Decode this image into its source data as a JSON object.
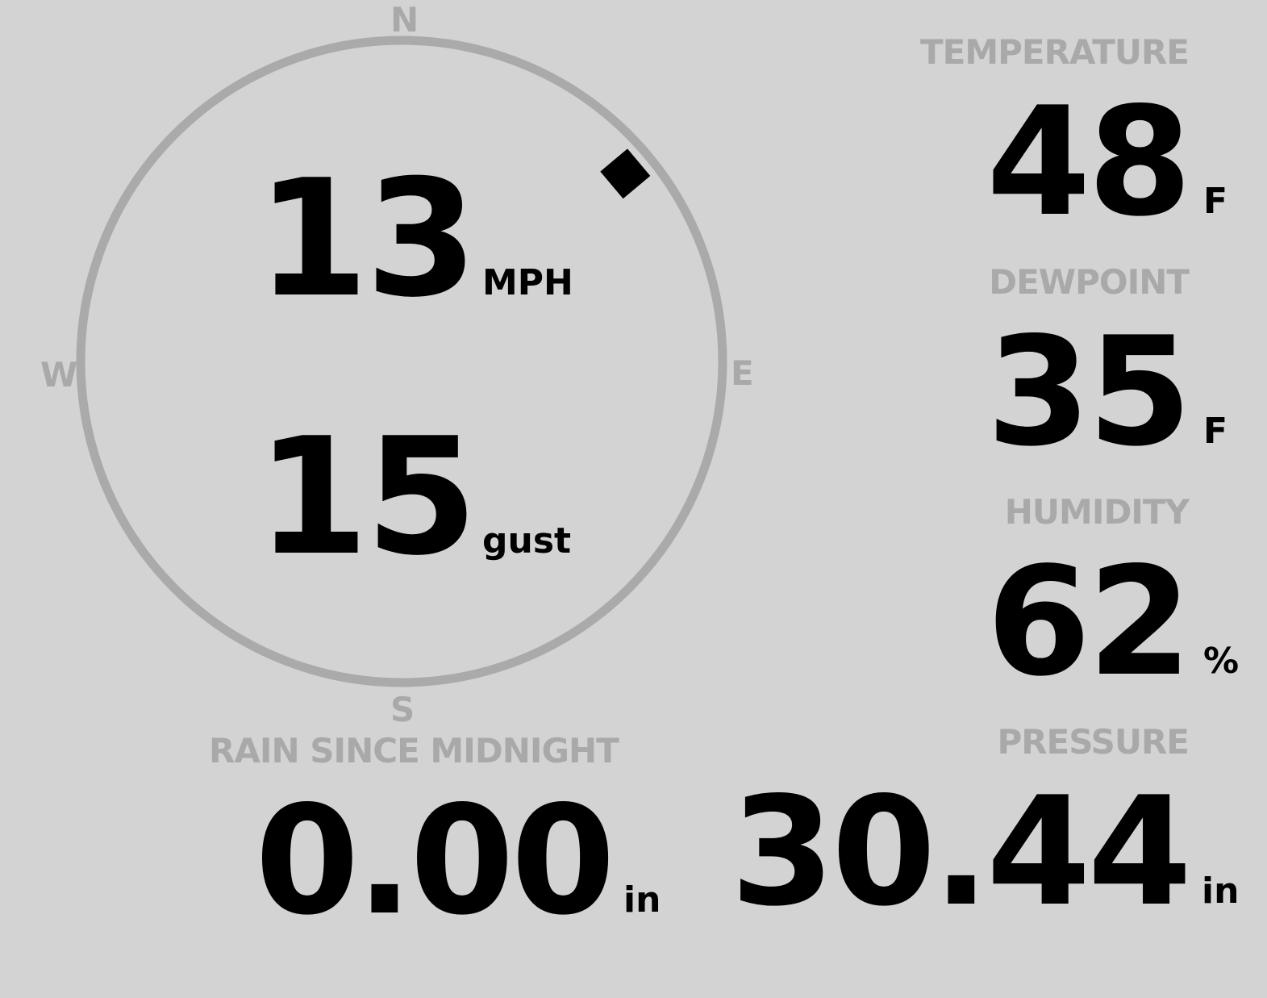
{
  "wind": {
    "speed": "13",
    "speed_unit": "MPH",
    "gust": "15",
    "gust_unit": "gust",
    "direction_deg": 50,
    "cardinals": {
      "n": "N",
      "e": "E",
      "s": "S",
      "w": "W"
    }
  },
  "temperature": {
    "label": "TEMPERATURE",
    "value": "48",
    "unit": "F"
  },
  "dewpoint": {
    "label": "DEWPOINT",
    "value": "35",
    "unit": "F"
  },
  "humidity": {
    "label": "HUMIDITY",
    "value": "62",
    "unit": "%"
  },
  "pressure": {
    "label": "PRESSURE",
    "value": "30.44",
    "unit": "in"
  },
  "rain": {
    "label": "RAIN SINCE MIDNIGHT",
    "value": "0.00",
    "unit": "in"
  },
  "colors": {
    "background": "#d3d3d3",
    "label": "#a9a9a9",
    "value": "#000000",
    "ring": "#aaaaaa"
  }
}
